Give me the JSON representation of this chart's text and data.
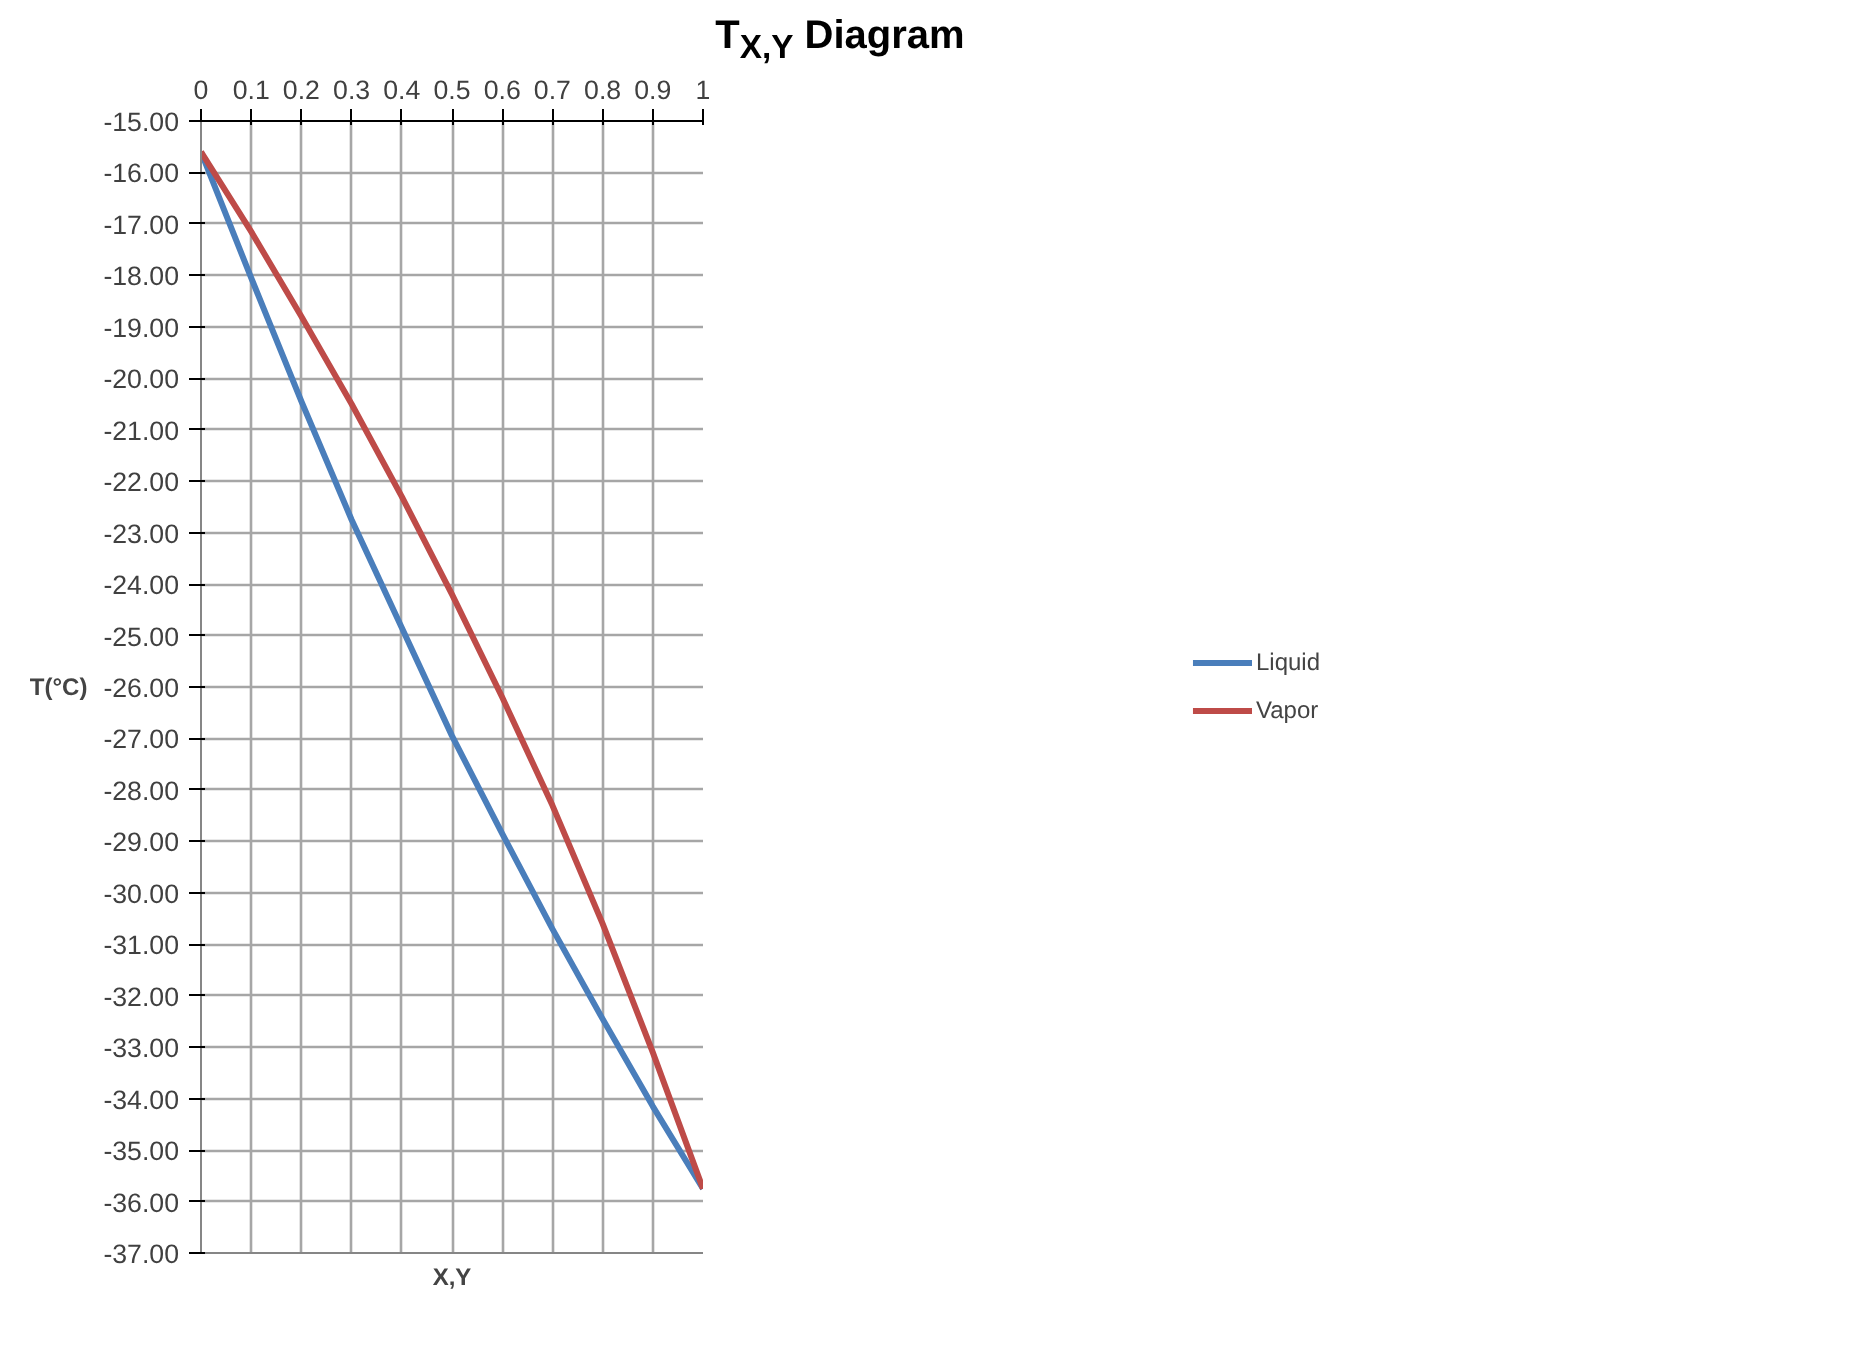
{
  "chart_data": {
    "type": "line",
    "title": "T$_{X,Y}$ Diagram",
    "xlabel": "X,Y",
    "ylabel": "T(°C)",
    "x": [
      0,
      0.1,
      0.2,
      0.3,
      0.4,
      0.5,
      0.6,
      0.7,
      0.8,
      0.9,
      1
    ],
    "series": [
      {
        "name": "Liquid",
        "color": "#4a7ebb",
        "values": [
          -15.6,
          -18.05,
          -20.45,
          -22.75,
          -24.85,
          -26.95,
          -28.85,
          -30.7,
          -32.45,
          -34.15,
          -35.75
        ]
      },
      {
        "name": "Vapor",
        "color": "#be4b48",
        "values": [
          -15.6,
          -17.15,
          -18.8,
          -20.5,
          -22.3,
          -24.2,
          -26.2,
          -28.3,
          -30.6,
          -33.1,
          -35.75
        ]
      }
    ],
    "xlim": [
      0,
      1
    ],
    "ylim": [
      -37,
      -15
    ],
    "xticks": [
      0,
      0.1,
      0.2,
      0.3,
      0.4,
      0.5,
      0.6,
      0.7,
      0.8,
      0.9,
      1
    ],
    "yticks": [
      {
        "value": -15,
        "label": "-15.00"
      },
      {
        "value": -16,
        "label": "-16.00"
      },
      {
        "value": -17,
        "label": "-17.00"
      },
      {
        "value": -18,
        "label": "-18.00"
      },
      {
        "value": -19,
        "label": "-19.00"
      },
      {
        "value": -20,
        "label": "-20.00"
      },
      {
        "value": -21,
        "label": "-21.00"
      },
      {
        "value": -22,
        "label": "-22.00"
      },
      {
        "value": -23,
        "label": "-23.00"
      },
      {
        "value": -24,
        "label": "-24.00"
      },
      {
        "value": -25,
        "label": "-25.00"
      },
      {
        "value": -26,
        "label": "-26.00"
      },
      {
        "value": -27,
        "label": "-27.00"
      },
      {
        "value": -28,
        "label": "-28.00"
      },
      {
        "value": -29,
        "label": "-29.00"
      },
      {
        "value": -30,
        "label": "-30.00"
      },
      {
        "value": -31,
        "label": "-31.00"
      },
      {
        "value": -32,
        "label": "-32.00"
      },
      {
        "value": -33,
        "label": "-33.00"
      },
      {
        "value": -34,
        "label": "-34.00"
      },
      {
        "value": -35,
        "label": "-35.00"
      },
      {
        "value": -36,
        "label": "-36.00"
      },
      {
        "value": -37,
        "label": "-37.00"
      }
    ],
    "grid": true,
    "legend": "right",
    "marker": "none",
    "line_style": "solid"
  }
}
